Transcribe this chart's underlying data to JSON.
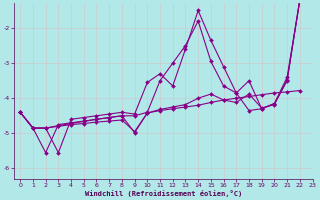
{
  "xlabel": "Windchill (Refroidissement éolien,°C)",
  "background_color": "#b2e8e8",
  "grid_color": "#aaaaaa",
  "line_color": "#880088",
  "xlim": [
    -0.5,
    23
  ],
  "ylim": [
    -6.3,
    -1.3
  ],
  "yticks": [
    -6,
    -5,
    -4,
    -3,
    -2
  ],
  "xticks": [
    0,
    1,
    2,
    3,
    4,
    5,
    6,
    7,
    8,
    9,
    10,
    11,
    12,
    13,
    14,
    15,
    16,
    17,
    18,
    19,
    20,
    21,
    22,
    23
  ],
  "sA": [
    -4.4,
    -4.85,
    -4.85,
    -5.55,
    -4.6,
    -4.55,
    -4.5,
    -4.45,
    -4.4,
    -4.45,
    -3.55,
    -3.3,
    -3.65,
    -2.6,
    -1.5,
    -2.35,
    -3.1,
    -3.85,
    -3.5,
    -4.3,
    -4.15,
    -3.5,
    -1.2
  ],
  "sB": [
    -4.4,
    -4.85,
    -4.85,
    -4.8,
    -4.75,
    -4.72,
    -4.68,
    -4.65,
    -4.62,
    -4.95,
    -4.42,
    -4.35,
    -4.3,
    -4.25,
    -4.2,
    -4.12,
    -4.05,
    -4.0,
    -3.95,
    -3.9,
    -3.85,
    -3.82,
    -3.78
  ],
  "sC": [
    -4.4,
    -4.85,
    -5.55,
    -4.75,
    -4.7,
    -4.65,
    -4.6,
    -4.55,
    -4.5,
    -4.5,
    -4.4,
    -3.5,
    -3.0,
    -2.5,
    -1.8,
    -2.95,
    -3.65,
    -3.85,
    -4.35,
    -4.3,
    -4.15,
    -3.4,
    -1.2
  ],
  "sD": [
    -4.4,
    -4.85,
    -4.85,
    -4.78,
    -4.72,
    -4.66,
    -4.6,
    -4.55,
    -4.5,
    -4.98,
    -4.42,
    -4.32,
    -4.25,
    -4.18,
    -4.0,
    -3.88,
    -4.05,
    -4.12,
    -3.88,
    -4.28,
    -4.18,
    -3.48,
    -1.2
  ]
}
